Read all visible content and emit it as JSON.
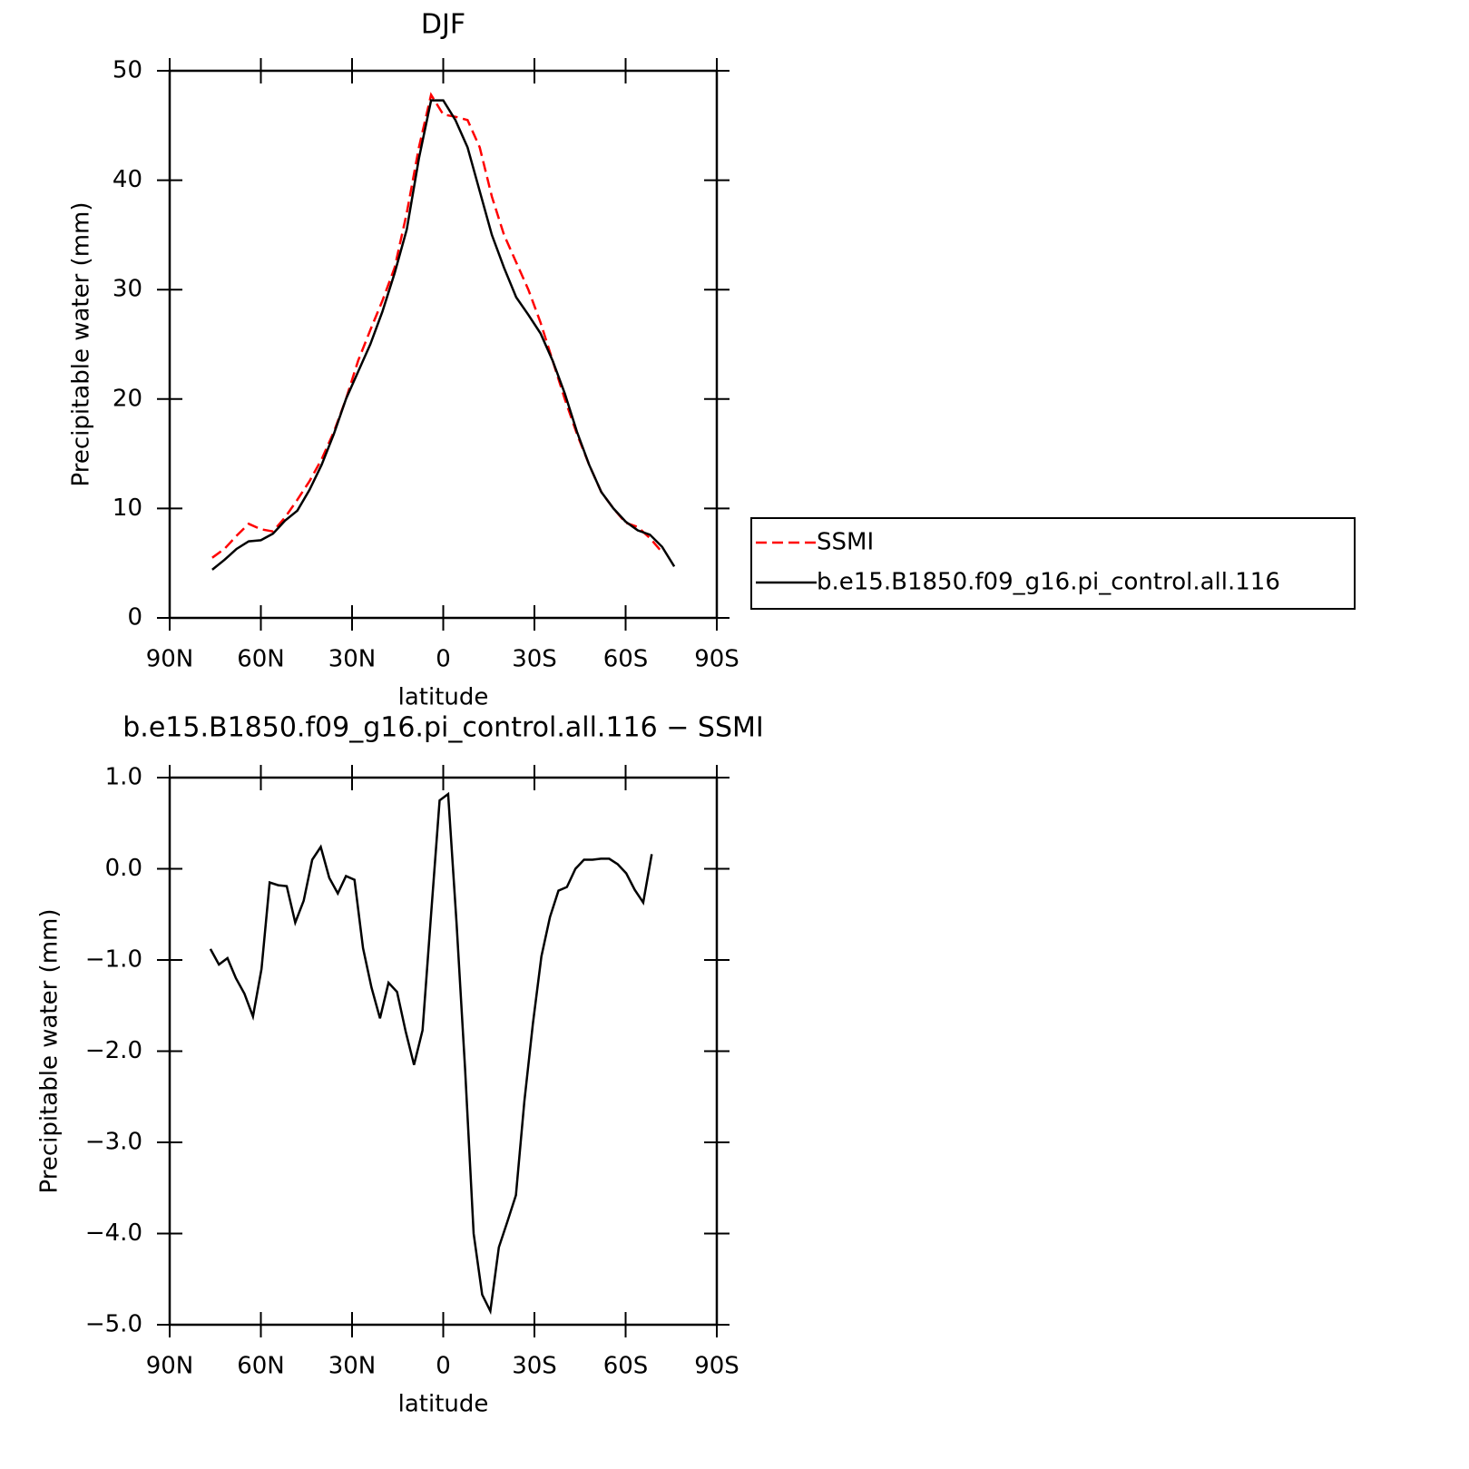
{
  "chart_data": [
    {
      "type": "line",
      "title": "DJF",
      "xlabel": "latitude",
      "ylabel": "Precipitable water (mm)",
      "x": [
        76,
        72,
        68,
        64,
        60,
        56,
        52,
        48,
        44,
        40,
        36,
        32,
        28,
        24,
        20,
        16,
        12,
        8,
        4,
        0,
        -4,
        -8,
        -12,
        -16,
        -20,
        -24,
        -28,
        -32,
        -36,
        -40,
        -44,
        -48,
        -52,
        -56,
        -60,
        -64,
        -68,
        -72,
        -76
      ],
      "series": [
        {
          "name": "SSMI",
          "color": "#ff0000",
          "dash": true,
          "values": [
            5.5,
            6.3,
            7.5,
            8.6,
            8.1,
            7.9,
            9.2,
            10.8,
            12.5,
            14.5,
            17.0,
            20,
            23.5,
            26.3,
            29,
            32,
            37,
            43,
            47.8,
            46,
            45.8,
            45.5,
            43,
            38.5,
            35,
            32.5,
            30,
            27,
            23.5,
            20,
            16.8,
            14,
            11.5,
            10,
            8.7,
            8.3,
            7.3,
            6.0,
            null
          ]
        },
        {
          "name": "b.e15.B1850.f09_g16.pi_control.all.116",
          "color": "#000000",
          "dash": false,
          "values": [
            4.4,
            5.3,
            6.3,
            7.0,
            7.1,
            7.7,
            8.9,
            9.8,
            11.7,
            14,
            16.8,
            20,
            22.5,
            25,
            28,
            31.5,
            35.5,
            42,
            47.3,
            47.3,
            45.5,
            43,
            39,
            35,
            32,
            29.3,
            27.7,
            26,
            23.5,
            20.5,
            17,
            14,
            11.5,
            10,
            8.8,
            8,
            7.6,
            6.5,
            4.7
          ]
        }
      ],
      "xlim": [
        90,
        -90
      ],
      "xticks": [
        {
          "value": 90,
          "label": "90N"
        },
        {
          "value": 60,
          "label": "60N"
        },
        {
          "value": 30,
          "label": "30N"
        },
        0,
        {
          "value": -30,
          "label": "30S"
        },
        {
          "value": -60,
          "label": "60S"
        },
        {
          "value": -90,
          "label": "90S"
        }
      ],
      "ylim": [
        0,
        50
      ],
      "yticks": [
        0,
        10,
        20,
        30,
        40,
        50
      ],
      "legend": "right"
    },
    {
      "type": "line",
      "title": "b.e15.B1850.f09_g16.pi_control.all.116 − SSMI",
      "xlabel": "latitude",
      "ylabel": "Precipitable water (mm)",
      "x": [
        76.6,
        73.8,
        71.0,
        68.2,
        65.4,
        62.6,
        59.8,
        57.1,
        54.3,
        51.5,
        48.7,
        45.9,
        43.1,
        40.3,
        37.5,
        34.7,
        32.0,
        29.2,
        26.4,
        23.6,
        20.8,
        18.0,
        15.2,
        12.4,
        9.6,
        6.8,
        4.0,
        1.2,
        -1.6,
        -4.4,
        -7.2,
        -10.0,
        -12.8,
        -15.5,
        -18.3,
        -21.1,
        -23.9,
        -26.7,
        -29.5,
        -32.3,
        -35.1,
        -37.9,
        -40.7,
        -43.5,
        -46.3,
        -49.1,
        -51.9,
        -54.6,
        -57.4,
        -60.2,
        -63.0,
        -65.8,
        -68.6
      ],
      "series": [
        {
          "color": "#000000",
          "dash": false,
          "values": [
            -0.88,
            -1.05,
            -0.98,
            -1.2,
            -1.37,
            -1.62,
            -1.1,
            -0.15,
            -0.18,
            -0.19,
            -0.59,
            -0.35,
            0.1,
            0.24,
            -0.1,
            -0.27,
            -0.08,
            -0.12,
            -0.87,
            -1.3,
            -1.64,
            -1.25,
            -1.35,
            -1.78,
            -2.15,
            -1.77,
            -0.5,
            0.75,
            0.82,
            -0.6,
            -2.2,
            -4.0,
            -4.67,
            -4.85,
            -4.15,
            -3.87,
            -3.58,
            -2.55,
            -1.7,
            -0.96,
            -0.53,
            -0.24,
            -0.2,
            0.0,
            0.1,
            0.1,
            0.11,
            0.11,
            0.05,
            -0.05,
            -0.23,
            -0.37,
            0.16
          ]
        }
      ],
      "xlim": [
        90,
        -90
      ],
      "xticks": [
        {
          "value": 90,
          "label": "90N"
        },
        {
          "value": 60,
          "label": "60N"
        },
        {
          "value": 30,
          "label": "30N"
        },
        0,
        {
          "value": -30,
          "label": "30S"
        },
        {
          "value": -60,
          "label": "60S"
        },
        {
          "value": -90,
          "label": "90S"
        }
      ],
      "ylim": [
        -5,
        1
      ],
      "yticks": [
        {
          "value": -5,
          "label": "−5.0"
        },
        {
          "value": -4,
          "label": "−4.0"
        },
        {
          "value": -3,
          "label": "−3.0"
        },
        {
          "value": -2,
          "label": "−2.0"
        },
        {
          "value": -1,
          "label": "−1.0"
        },
        {
          "value": 0,
          "label": "0.0"
        },
        {
          "value": 1,
          "label": "1.0"
        }
      ]
    }
  ]
}
